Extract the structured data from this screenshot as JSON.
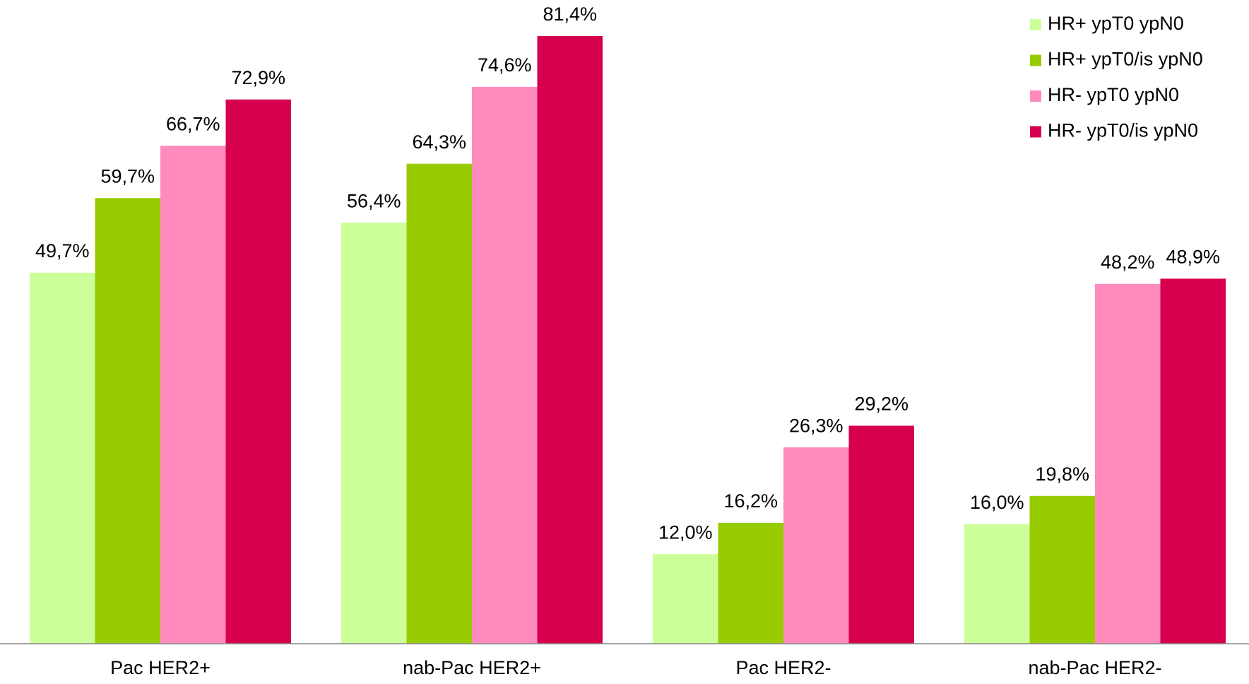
{
  "chart_data": {
    "type": "bar",
    "categories": [
      "Pac HER2+",
      "nab-Pac HER2+",
      "Pac HER2-",
      "nab-Pac HER2-"
    ],
    "series": [
      {
        "name": "HR+ ypT0 ypN0",
        "color": "#ccff99",
        "values": [
          49.7,
          56.4,
          12.0,
          16.0
        ],
        "value_labels": [
          "49,7%",
          "56,4%",
          "12,0%",
          "16,0%"
        ]
      },
      {
        "name": "HR+ ypT0/is ypN0",
        "color": "#99cc00",
        "values": [
          59.7,
          64.3,
          16.2,
          19.8
        ],
        "value_labels": [
          "59,7%",
          "64,3%",
          "16,2%",
          "19,8%"
        ]
      },
      {
        "name": "HR- ypT0 ypN0",
        "color": "#ff8bbd",
        "values": [
          66.7,
          74.6,
          26.3,
          48.2
        ],
        "value_labels": [
          "66,7%",
          "74,6%",
          "26,3%",
          "48,2%"
        ]
      },
      {
        "name": "HR- ypT0/is ypN0",
        "color": "#d6004f",
        "values": [
          72.9,
          81.4,
          29.2,
          48.9
        ],
        "value_labels": [
          "72,9%",
          "81,4%",
          "29,2%",
          "48,9%"
        ]
      }
    ],
    "legend": "top-right"
  }
}
